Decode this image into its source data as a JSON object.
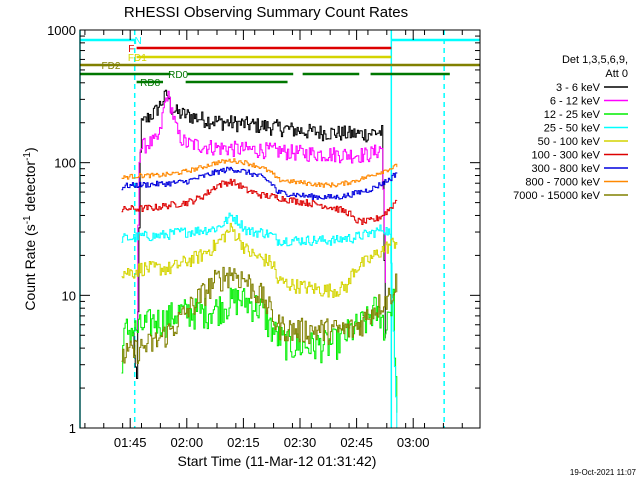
{
  "chart_data": {
    "type": "line",
    "title": "RHESSI Observing Summary Count Rates",
    "xlabel": "Start Time (11-Mar-12 01:31:42)",
    "ylabel_main": "Count Rate (s",
    "ylabel_exp1": "-1",
    "ylabel_mid": " detector",
    "ylabel_exp2": "-1",
    "ylabel_end": ")",
    "yscale": "log",
    "xlim_min": [
      0,
      106
    ],
    "ylim": [
      1,
      1000
    ],
    "x_ticks": [
      {
        "min": 13.3,
        "label": "01:45"
      },
      {
        "min": 28.3,
        "label": "02:00"
      },
      {
        "min": 43.3,
        "label": "02:15"
      },
      {
        "min": 58.3,
        "label": "02:30"
      },
      {
        "min": 73.3,
        "label": "02:45"
      },
      {
        "min": 88.3,
        "label": "03:00"
      }
    ],
    "y_ticks": [
      {
        "value": 1,
        "label": "1"
      },
      {
        "value": 10,
        "label": "10"
      },
      {
        "value": 100,
        "label": "100"
      },
      {
        "value": 1000,
        "label": "1000"
      }
    ],
    "legend": {
      "position": "right",
      "header_line1": "Det 1,3,5,6,9,",
      "header_line2": "Att 0"
    },
    "series": [
      {
        "name": "3 - 6 keV",
        "color": "#000000",
        "x": [
          14,
          15,
          16,
          18,
          20,
          22,
          23,
          24,
          26,
          28,
          32,
          36,
          40,
          44,
          48,
          52,
          56,
          60,
          64,
          68,
          72,
          76,
          78,
          80,
          81
        ],
        "y": [
          5,
          2,
          190,
          220,
          245,
          300,
          330,
          260,
          235,
          230,
          215,
          205,
          200,
          195,
          190,
          185,
          178,
          172,
          170,
          168,
          165,
          165,
          170,
          170,
          3
        ]
      },
      {
        "name": "6 - 12 keV",
        "color": "#ff00ff",
        "x": [
          15,
          15.5,
          16,
          18,
          20,
          21,
          22,
          23,
          24,
          25,
          26,
          28,
          32,
          36,
          40,
          44,
          48,
          52,
          56,
          60,
          64,
          68,
          72,
          76,
          78,
          80,
          81
        ],
        "y": [
          5,
          110,
          130,
          140,
          145,
          160,
          250,
          330,
          270,
          200,
          160,
          140,
          135,
          130,
          128,
          126,
          125,
          123,
          120,
          118,
          117,
          116,
          115,
          115,
          120,
          130,
          10
        ]
      },
      {
        "name": "12 - 25 keV",
        "color": "#00ee00",
        "x": [
          11,
          12,
          15,
          17,
          20,
          22,
          24,
          26,
          28,
          32,
          36,
          40,
          42,
          44,
          48,
          50,
          52,
          54,
          56,
          58,
          62,
          66,
          68,
          70,
          72,
          74,
          76,
          78,
          79,
          80,
          80.5,
          81,
          82,
          83,
          84
        ],
        "y": [
          3.5,
          5.5,
          5.5,
          6,
          6.5,
          6.5,
          7,
          7.5,
          7.5,
          7.5,
          8,
          9,
          9.5,
          9,
          8,
          6,
          5,
          4.5,
          4.2,
          4.2,
          4.2,
          4.3,
          4.5,
          5,
          5.5,
          6,
          6.5,
          8,
          7,
          8,
          4,
          7,
          8,
          9,
          1
        ]
      },
      {
        "name": "25 - 50 keV",
        "color": "#00ffff",
        "x": [
          11,
          14,
          16,
          20,
          24,
          26,
          28,
          32,
          36,
          38,
          40,
          42,
          44,
          46,
          48,
          50,
          51,
          51.5,
          52,
          56,
          60,
          64,
          68,
          70,
          72,
          74,
          76,
          78,
          80,
          82,
          84
        ],
        "y": [
          27,
          27,
          28,
          28,
          29,
          30,
          30,
          31,
          32,
          35,
          40,
          36,
          31,
          30,
          30,
          29,
          28,
          27.5,
          26,
          26,
          26,
          26,
          26,
          27,
          27,
          28,
          29,
          30,
          32,
          30,
          1
        ]
      },
      {
        "name": "50 - 100 keV",
        "color": "#d4d400",
        "x": [
          11,
          14,
          16,
          20,
          24,
          26,
          28,
          32,
          36,
          38,
          40,
          42,
          44,
          46,
          48,
          50,
          51,
          51.5,
          52,
          56,
          60,
          64,
          68,
          70,
          71,
          71.5,
          72,
          74,
          76,
          78,
          80,
          82,
          84
        ],
        "y": [
          15,
          15,
          16,
          16,
          16,
          17,
          18,
          20,
          24,
          28,
          32,
          27,
          22,
          20,
          19,
          18,
          17,
          16.5,
          13,
          12,
          11.5,
          11,
          11,
          11.5,
          12,
          13,
          15,
          17,
          18,
          20,
          22,
          24,
          26
        ]
      },
      {
        "name": "100 - 300 keV",
        "color": "#dd0000",
        "x": [
          11,
          12,
          16,
          20,
          22,
          24,
          28,
          30,
          32,
          34,
          36,
          38,
          40,
          42,
          44,
          48,
          52,
          56,
          60,
          64,
          68,
          70,
          71,
          71.5,
          72,
          74,
          76,
          78,
          80,
          82,
          84
        ],
        "y": [
          43,
          45,
          45,
          46,
          47,
          48,
          50,
          52,
          55,
          60,
          67,
          70,
          72,
          68,
          62,
          57,
          55,
          52,
          50,
          48,
          45,
          43,
          42,
          41,
          38,
          36,
          36,
          37,
          40,
          45,
          53
        ]
      },
      {
        "name": "300 - 800 keV",
        "color": "#0000dd",
        "x": [
          11,
          12,
          16,
          20,
          24,
          28,
          32,
          36,
          40,
          44,
          48,
          50,
          51,
          51.5,
          52,
          56,
          60,
          64,
          68,
          70,
          72,
          74,
          76,
          78,
          80,
          82,
          84
        ],
        "y": [
          65,
          67,
          68,
          69,
          70,
          72,
          78,
          85,
          90,
          85,
          78,
          72,
          68,
          66,
          60,
          58,
          56,
          55,
          55,
          56,
          58,
          60,
          62,
          65,
          70,
          75,
          85
        ]
      },
      {
        "name": "800 - 7000 keV",
        "color": "#ff8800",
        "x": [
          11,
          12,
          16,
          20,
          24,
          28,
          32,
          36,
          40,
          44,
          48,
          50,
          51,
          51.5,
          52,
          56,
          60,
          64,
          68,
          70,
          72,
          74,
          76,
          78,
          80,
          82,
          84
        ],
        "y": [
          76,
          78,
          80,
          80,
          82,
          86,
          92,
          100,
          104,
          100,
          92,
          86,
          82,
          80,
          75,
          72,
          70,
          68,
          68,
          70,
          72,
          75,
          78,
          82,
          86,
          90,
          95
        ]
      },
      {
        "name": "7000 - 15000 keV",
        "color": "#808000",
        "x": [
          11,
          16,
          20,
          24,
          28,
          32,
          36,
          40,
          44,
          46,
          48,
          50,
          51,
          51.5,
          52,
          56,
          60,
          64,
          68,
          70,
          72,
          74,
          76,
          78,
          80,
          82,
          84
        ],
        "y": [
          3.5,
          4,
          4.5,
          5.5,
          7.5,
          10,
          13,
          15,
          13,
          11,
          10,
          8,
          7,
          6.5,
          6,
          5.5,
          5.5,
          5.5,
          5.5,
          5.5,
          5.6,
          6,
          7,
          8,
          9,
          10,
          13
        ]
      }
    ],
    "status_bars": [
      {
        "label": "N",
        "color": "#00ffff",
        "segments": [
          [
            0,
            14.5
          ],
          [
            82.5,
            106
          ]
        ]
      },
      {
        "label": "F",
        "color": "#dd0000",
        "segments": [
          [
            15,
            82.5
          ]
        ]
      },
      {
        "label": "FD1",
        "color": "#d4d400",
        "segments": [
          [
            15,
            82.5
          ]
        ]
      },
      {
        "label": "FD2",
        "color": "#808000",
        "segments": [
          [
            0,
            82.5
          ],
          [
            82.5,
            106
          ]
        ]
      },
      {
        "label": "RD0",
        "color": "#007700",
        "segments": [
          [
            0,
            24
          ],
          [
            28.5,
            56.5
          ],
          [
            59,
            74
          ],
          [
            77,
            98
          ]
        ]
      },
      {
        "label": "RD8",
        "color": "#007700",
        "segments": [
          [
            15,
            22
          ],
          [
            28,
            55
          ]
        ]
      }
    ],
    "vertical_markers": [
      {
        "x": 0,
        "color": "#00ffff",
        "style": "solid"
      },
      {
        "x": 14.5,
        "color": "#00ffff",
        "style": "dashed"
      },
      {
        "x": 82.5,
        "color": "#00ffff",
        "style": "solid"
      },
      {
        "x": 96.5,
        "color": "#00ffff",
        "style": "dashed"
      }
    ]
  },
  "footer_timestamp": "19-Oct-2021 11:07"
}
